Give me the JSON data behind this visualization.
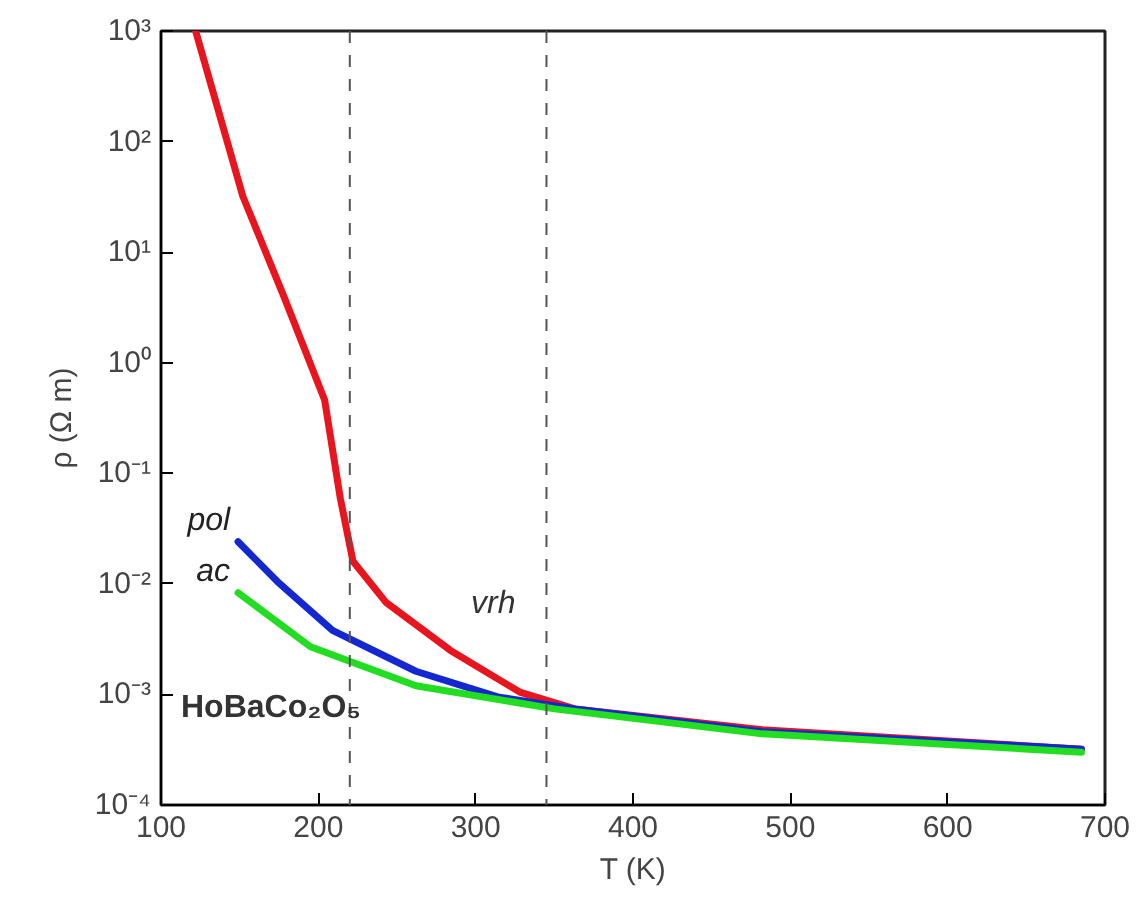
{
  "chart_data": {
    "type": "line",
    "xlabel": "T (K)",
    "ylabel": "ρ (Ω m)",
    "log": "y",
    "xlim": [
      100,
      700
    ],
    "xticks": [
      100,
      200,
      300,
      400,
      500,
      600,
      700
    ],
    "ylim": [
      0.0001,
      1000
    ],
    "yticks": [
      {
        "value": 0.0001,
        "label": "10⁻⁴"
      },
      {
        "value": 0.001,
        "label": "10⁻³"
      },
      {
        "value": 0.01,
        "label": "10⁻²"
      },
      {
        "value": 0.1,
        "label": "10⁻¹"
      },
      {
        "value": 1,
        "label": "10⁰"
      },
      {
        "value": 10,
        "label": "10¹"
      },
      {
        "value": 100,
        "label": "10²"
      },
      {
        "value": 1000,
        "label": "10³"
      }
    ],
    "grid": false,
    "marker": "none",
    "line_style": "solid",
    "series": [
      {
        "color": "#e8141e",
        "x": [
          122,
          152,
          178,
          204,
          214,
          222,
          243,
          284,
          328,
          363,
          482,
          685
        ],
        "values": [
          1000,
          32,
          4.0,
          0.46,
          0.059,
          0.016,
          0.0068,
          0.0025,
          0.00105,
          0.00074,
          0.00048,
          0.00032
        ]
      },
      {
        "name": "pol",
        "color": "#1428d2",
        "x": [
          149,
          174,
          209,
          262,
          314,
          363,
          482,
          685
        ],
        "values": [
          0.024,
          0.0105,
          0.0038,
          0.00162,
          0.00095,
          0.00074,
          0.00046,
          0.00032
        ]
      },
      {
        "name": "ac",
        "color": "#22dd22",
        "x": [
          149,
          195,
          262,
          350,
          482,
          685
        ],
        "values": [
          0.0083,
          0.0027,
          0.0012,
          0.00074,
          0.00044,
          0.0003
        ]
      }
    ],
    "ref_lines": [
      {
        "axis": "x",
        "value": 220,
        "line_style": "dashed",
        "color": "#555555"
      },
      {
        "axis": "x",
        "value": 345,
        "line_style": "dashed",
        "color": "#555555"
      }
    ],
    "annotations": [
      "vrh",
      "HoBaCo₂O₅"
    ]
  }
}
